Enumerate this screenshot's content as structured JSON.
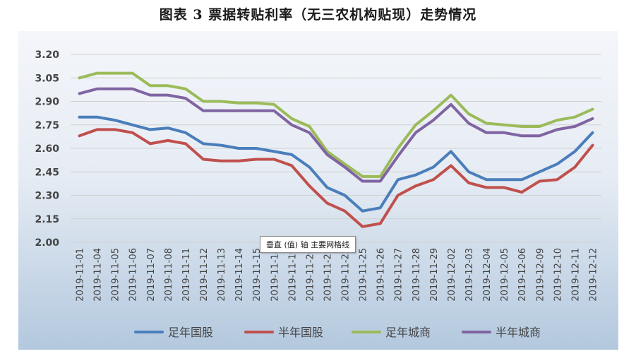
{
  "chart_data": {
    "type": "line",
    "title": "图表 3  票据转贴利率（无三农机构贴现）走势情况",
    "x": [
      "2019-11-01",
      "2019-11-04",
      "2019-11-05",
      "2019-11-06",
      "2019-11-07",
      "2019-11-08",
      "2019-11-11",
      "2019-11-12",
      "2019-11-13",
      "2019-11-14",
      "2019-11-15",
      "2019-11-18",
      "2019-11-19",
      "2019-11-20",
      "2019-11-21",
      "2019-11-22",
      "2019-11-25",
      "2019-11-26",
      "2019-11-27",
      "2019-11-28",
      "2019-11-29",
      "2019-12-02",
      "2019-12-03",
      "2019-12-04",
      "2019-12-05",
      "2019-12-06",
      "2019-12-09",
      "2019-12-10",
      "2019-12-11",
      "2019-12-12"
    ],
    "y_ticks": [
      "3.20",
      "3.05",
      "2.90",
      "2.75",
      "2.60",
      "2.45",
      "2.30",
      "2.15",
      "2.00"
    ],
    "ylim": [
      2.0,
      3.2
    ],
    "grid": true,
    "legend_position": "bottom",
    "series": [
      {
        "name": "足年国股",
        "color": "#4a7ebb",
        "values": [
          2.8,
          2.8,
          2.78,
          2.75,
          2.72,
          2.73,
          2.7,
          2.63,
          2.62,
          2.6,
          2.6,
          2.58,
          2.56,
          2.48,
          2.35,
          2.3,
          2.2,
          2.22,
          2.4,
          2.43,
          2.48,
          2.58,
          2.45,
          2.4,
          2.4,
          2.4,
          2.45,
          2.5,
          2.58,
          2.7
        ]
      },
      {
        "name": "半年国股",
        "color": "#c0504d",
        "values": [
          2.68,
          2.72,
          2.72,
          2.7,
          2.63,
          2.65,
          2.63,
          2.53,
          2.52,
          2.52,
          2.53,
          2.53,
          2.49,
          2.36,
          2.25,
          2.2,
          2.1,
          2.12,
          2.3,
          2.36,
          2.4,
          2.49,
          2.38,
          2.35,
          2.35,
          2.32,
          2.39,
          2.4,
          2.48,
          2.62
        ]
      },
      {
        "name": "足年城商",
        "color": "#9bbb59",
        "values": [
          3.05,
          3.08,
          3.08,
          3.08,
          3.0,
          3.0,
          2.98,
          2.9,
          2.9,
          2.89,
          2.89,
          2.88,
          2.79,
          2.74,
          2.58,
          2.5,
          2.42,
          2.42,
          2.6,
          2.75,
          2.84,
          2.94,
          2.82,
          2.76,
          2.75,
          2.74,
          2.74,
          2.78,
          2.8,
          2.85
        ]
      },
      {
        "name": "半年城商",
        "color": "#8064a2",
        "values": [
          2.95,
          2.98,
          2.98,
          2.98,
          2.94,
          2.94,
          2.92,
          2.84,
          2.84,
          2.84,
          2.84,
          2.84,
          2.75,
          2.7,
          2.56,
          2.48,
          2.39,
          2.39,
          2.55,
          2.7,
          2.78,
          2.88,
          2.76,
          2.7,
          2.7,
          2.68,
          2.68,
          2.72,
          2.74,
          2.79
        ]
      }
    ]
  },
  "tooltip": {
    "text": "垂直 (值) 轴 主要网格线"
  }
}
